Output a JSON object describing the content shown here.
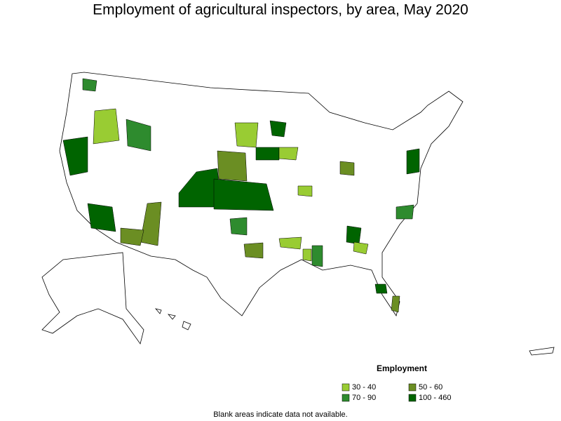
{
  "title": "Employment of agricultural inspectors, by area, May 2020",
  "legend": {
    "title": "Employment",
    "items": [
      {
        "label": "30 - 40",
        "color": "#99cc33"
      },
      {
        "label": "50 - 60",
        "color": "#6b8e23"
      },
      {
        "label": "70 - 90",
        "color": "#2e8b2e"
      },
      {
        "label": "100 - 460",
        "color": "#006400"
      }
    ]
  },
  "footnote": "Blank areas indicate data not available."
}
